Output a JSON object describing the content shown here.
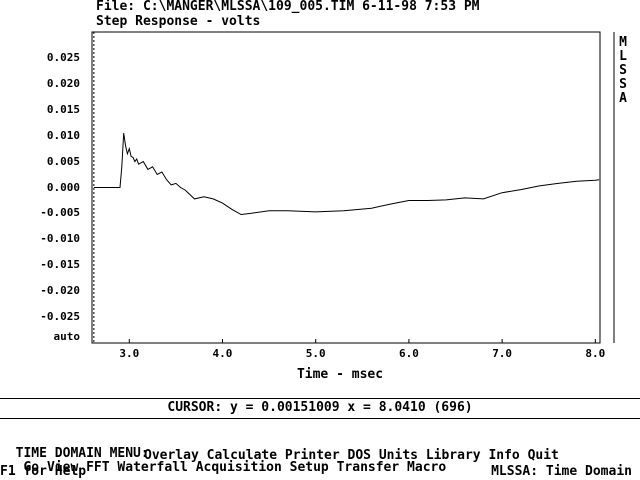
{
  "header": {
    "file_line": "File: C:\\MANGER\\MLSSA\\109_005.TIM 6-11-98 7:53 PM",
    "plot_title": "Step Response - volts"
  },
  "brand_vertical": [
    "M",
    "L",
    "S",
    "S",
    "A"
  ],
  "chart_data": {
    "type": "line",
    "title": "Step Response - volts",
    "xlabel": "Time - msec",
    "ylabel": "",
    "xlim": [
      2.6,
      8.05
    ],
    "ylim": [
      -0.03,
      0.03
    ],
    "x_ticks": [
      "3.0",
      "4.0",
      "5.0",
      "6.0",
      "7.0",
      "8.0"
    ],
    "y_ticks": [
      "0.025",
      "0.020",
      "0.015",
      "0.010",
      "0.005",
      "0.000",
      "-0.005",
      "-0.010",
      "-0.015",
      "-0.020",
      "-0.025"
    ],
    "y_bottom_label": "auto",
    "grid": false,
    "marker_x": 2.62,
    "cursor_x": 8.041,
    "series": [
      {
        "x": [
          2.62,
          2.9,
          2.92,
          2.94,
          2.96,
          2.98,
          3.0,
          3.02,
          3.04,
          3.06,
          3.08,
          3.1,
          3.15,
          3.2,
          3.25,
          3.3,
          3.35,
          3.4,
          3.45,
          3.5,
          3.55,
          3.6,
          3.7,
          3.8,
          3.9,
          4.0,
          4.1,
          4.2,
          4.3,
          4.5,
          4.7,
          5.0,
          5.3,
          5.6,
          5.8,
          6.0,
          6.2,
          6.4,
          6.6,
          6.8,
          7.0,
          7.2,
          7.4,
          7.6,
          7.8,
          8.0,
          8.04
        ],
        "y": [
          0.0,
          0.0,
          0.004,
          0.0105,
          0.008,
          0.0065,
          0.0075,
          0.006,
          0.0058,
          0.005,
          0.0055,
          0.0045,
          0.005,
          0.0035,
          0.004,
          0.0025,
          0.003,
          0.0015,
          0.0005,
          0.0008,
          0.0,
          -0.0005,
          -0.0022,
          -0.0018,
          -0.0022,
          -0.003,
          -0.0042,
          -0.0052,
          -0.005,
          -0.0045,
          -0.0045,
          -0.0047,
          -0.0045,
          -0.004,
          -0.0032,
          -0.0025,
          -0.0025,
          -0.0024,
          -0.002,
          -0.0022,
          -0.001,
          -0.0004,
          0.0003,
          0.0008,
          0.0012,
          0.0014,
          0.0015
        ]
      }
    ]
  },
  "cursor": {
    "readout": "CURSOR: y = 0.00151009 x = 8.0410 (696)"
  },
  "menu": {
    "title": "TIME DOMAIN MENU:",
    "row1": [
      "Go",
      "View",
      "FFT",
      "Waterfall",
      "Acquisition",
      "Setup",
      "Transfer",
      "Macro"
    ],
    "row2": [
      "Overlay",
      "Calculate",
      "Printer",
      "DOS",
      "Units",
      "Library",
      "Info",
      "Quit"
    ]
  },
  "status": {
    "help": "F1 for Help",
    "mode": "MLSSA: Time Domain"
  }
}
